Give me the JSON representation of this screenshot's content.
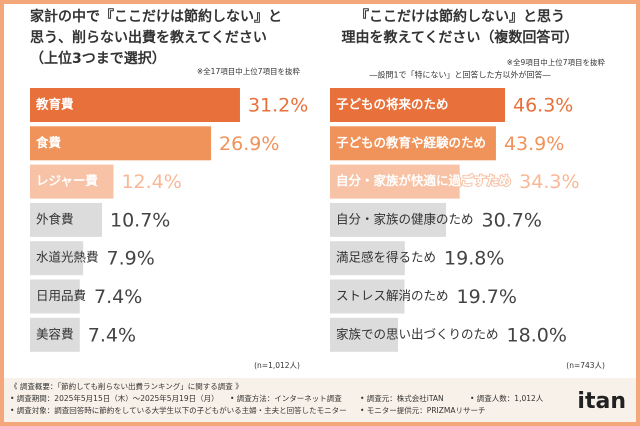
{
  "chart_data": [
    {
      "type": "hbar",
      "title": [
        "家計の中で『ここだけは節約しない』と",
        "思う、削らない出費を教えてください",
        "（上位3つまで選択）"
      ],
      "note": "※全17項目中上位7項目を抜粋",
      "categories": [
        "教育費",
        "食費",
        "レジャー費",
        "外食費",
        "水道光熱費",
        "日用品費",
        "美容費"
      ],
      "values": [
        31.2,
        26.9,
        12.4,
        10.7,
        7.9,
        7.4,
        7.4
      ],
      "value_labels": [
        "31.2%",
        "26.9%",
        "12.4%",
        "10.7%",
        "7.9%",
        "7.4%",
        "7.4%"
      ],
      "colors": [
        "#e8703a",
        "#f0935a",
        "#f8c2a6",
        "#dcdcdc",
        "#dcdcdc",
        "#dcdcdc",
        "#dcdcdc"
      ],
      "value_label_colors": [
        "#e8703a",
        "#f0935a",
        "#f8b896",
        "#444444",
        "#444444",
        "#444444",
        "#444444"
      ],
      "sample": "(n=1,012人)"
    },
    {
      "type": "hbar",
      "title": [
        "『ここだけは節約しない』と思う",
        "理由を教えてください（複数回答可）"
      ],
      "note": "※全9項目中上位7項目を抜粋",
      "subnote": "―設問1で「特にない」と回答した方以外が回答―",
      "categories": [
        "子どもの将来のため",
        "子どもの教育や経験のため",
        "自分・家族が快適に過ごすため",
        "自分・家族の健康のため",
        "満足感を得るため",
        "ストレス解消のため",
        "家族での思い出づくりのため"
      ],
      "values": [
        46.3,
        43.9,
        34.3,
        30.7,
        19.8,
        19.7,
        18.0
      ],
      "value_labels": [
        "46.3%",
        "43.9%",
        "34.3%",
        "30.7%",
        "19.8%",
        "19.7%",
        "18.0%"
      ],
      "colors": [
        "#e8703a",
        "#f0935a",
        "#f8c2a6",
        "#dcdcdc",
        "#dcdcdc",
        "#dcdcdc",
        "#dcdcdc"
      ],
      "value_label_colors": [
        "#e8703a",
        "#f0935a",
        "#f8b896",
        "#444444",
        "#444444",
        "#444444",
        "#444444"
      ],
      "sample": "(n=743人)"
    }
  ],
  "footer": {
    "heading": "《 調査概要：「節約しても削らない出費ランキング」に関する調査 》",
    "items": [
      "• 調査期間：2025年5月15日（木）～2025年5月19日（月）",
      "• 調査方法：インターネット調査",
      "• 調査元：株式会社iTAN",
      "• 調査人数：1,012人",
      "• 調査対象：調査回答時に節約をしている大学生以下の子どもがいる主婦・主夫と回答したモニター",
      "• モニター提供元：PRIZMAリサーチ"
    ],
    "logo": "itan"
  }
}
